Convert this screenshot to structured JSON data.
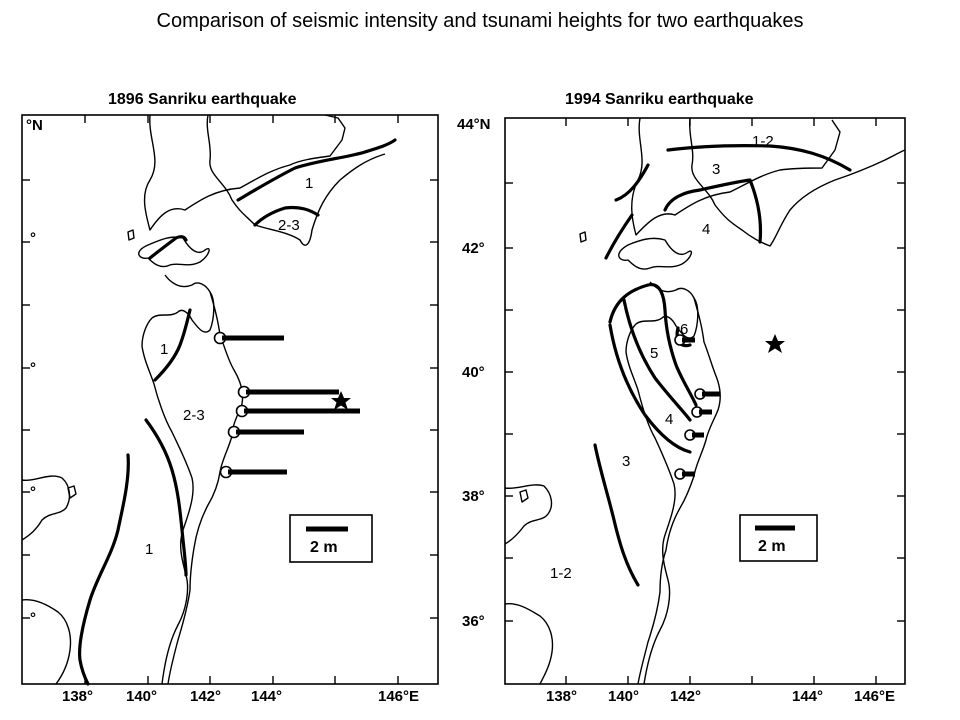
{
  "title": "Comparison of seismic intensity and tsunami heights for two earthquakes",
  "maps": [
    {
      "heading": "1896 Sanriku earthquake",
      "lon_ticks": [
        "138°",
        "140°",
        "142°",
        "144°",
        "146°E"
      ],
      "lat_ticks": [
        "°N",
        "°",
        "°",
        "°",
        "°"
      ],
      "intensity_labels": [
        "1",
        "2-3",
        "1",
        "2-3",
        "1"
      ],
      "scale_label": "2 m",
      "tsunami_heights_m": [
        2.1,
        3.1,
        3.6,
        2.2,
        2.1
      ]
    },
    {
      "heading": "1994 Sanriku earthquake",
      "lon_ticks": [
        "138°",
        "140°",
        "142°",
        "144°",
        "146°E"
      ],
      "lat_ticks": [
        "44°N",
        "42°",
        "40°",
        "38°",
        "36°"
      ],
      "intensity_labels": [
        "1-2",
        "3",
        "4",
        "6",
        "5",
        "4",
        "3",
        "1-2"
      ],
      "scale_label": "2 m",
      "tsunami_heights_m": [
        0.3,
        0.4,
        0.3,
        0.3,
        0.3
      ]
    }
  ]
}
